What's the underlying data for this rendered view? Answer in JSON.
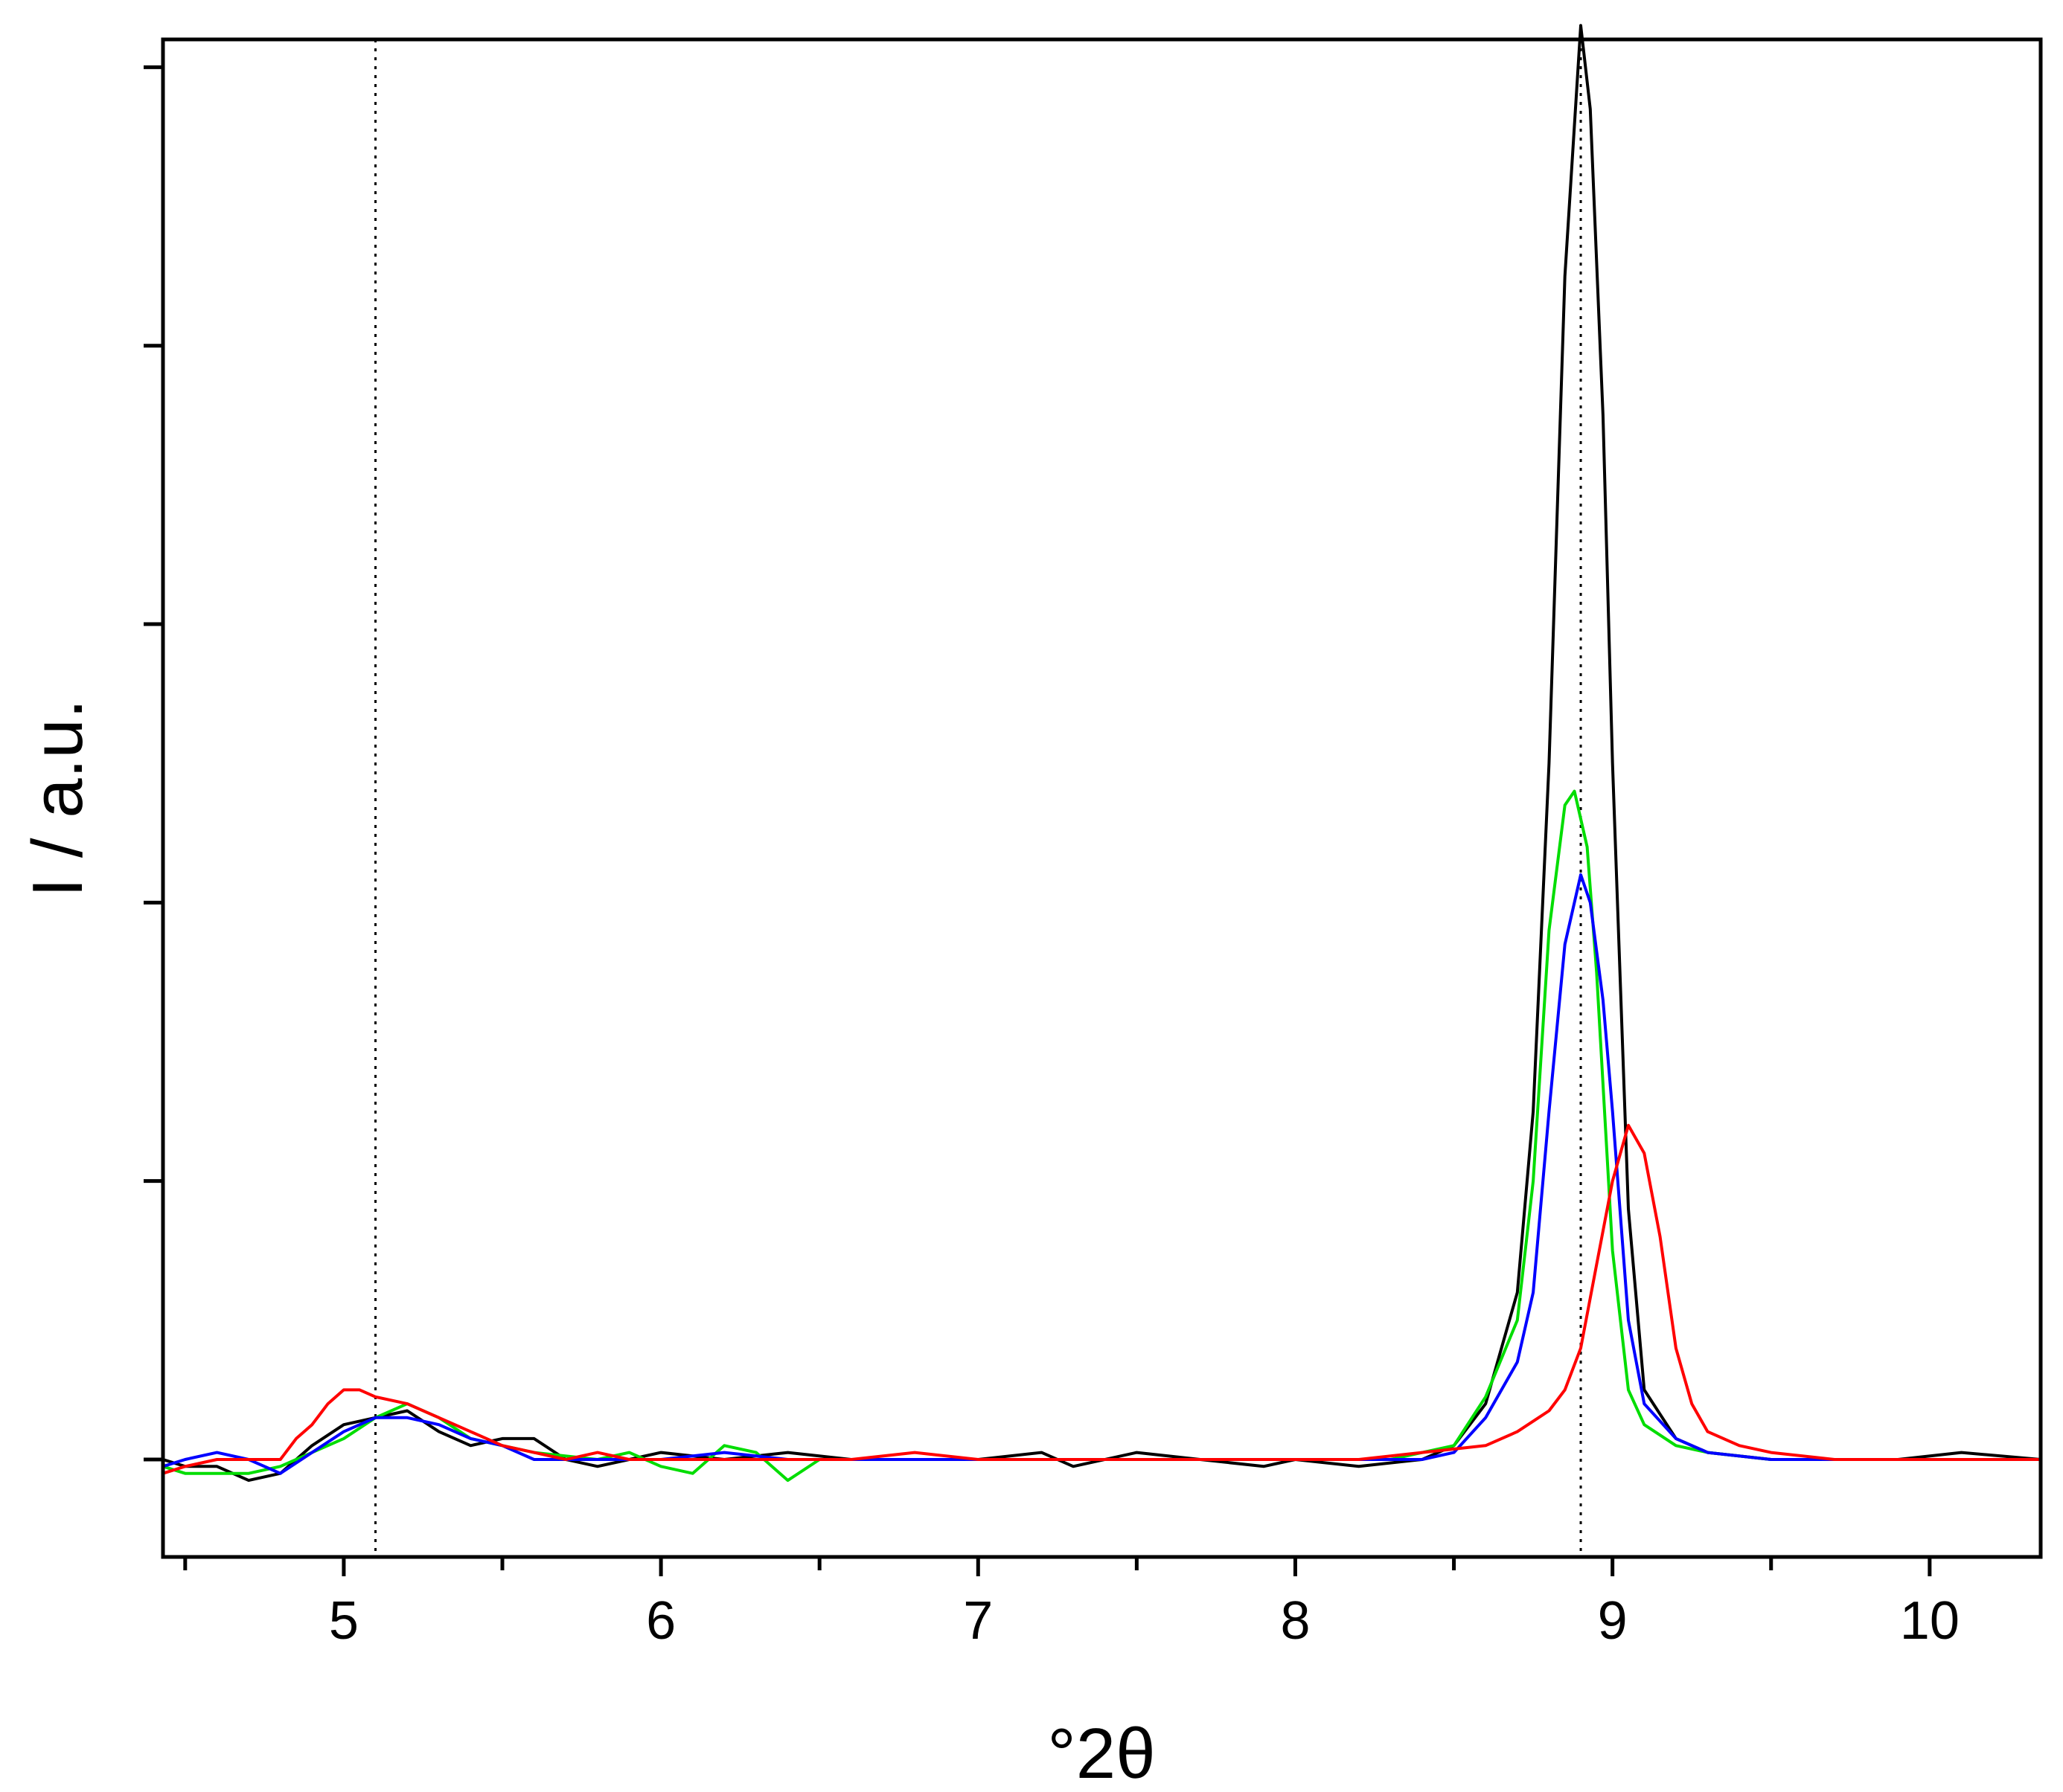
{
  "chart_data": {
    "type": "line",
    "title": "",
    "xlabel": "°2θ",
    "ylabel": "I / a.u.",
    "xlim": [
      4.43,
      10.35
    ],
    "ylim": [
      -0.07,
      1.02
    ],
    "x_ticks": [
      5,
      6,
      7,
      8,
      9,
      10
    ],
    "x_minor_ticks": [
      4.5,
      5.5,
      6.5,
      7.5,
      8.5,
      9.5
    ],
    "y_ticks": [
      0,
      0.2,
      0.4,
      0.6,
      0.8,
      1.0
    ],
    "y_tick_labels_shown": false,
    "grid": false,
    "legend": "none",
    "reference_lines": [
      5.1,
      8.9
    ],
    "series": [
      {
        "color": "#000000",
        "x": [
          4.43,
          4.5,
          4.6,
          4.7,
          4.8,
          4.9,
          5.0,
          5.1,
          5.2,
          5.3,
          5.4,
          5.5,
          5.6,
          5.7,
          5.8,
          5.9,
          6.0,
          6.2,
          6.4,
          6.6,
          6.8,
          7.0,
          7.2,
          7.3,
          7.5,
          7.7,
          7.9,
          8.0,
          8.2,
          8.4,
          8.5,
          8.6,
          8.7,
          8.75,
          8.8,
          8.85,
          8.9,
          8.93,
          8.97,
          9.0,
          9.05,
          9.1,
          9.2,
          9.3,
          9.5,
          9.7,
          9.9,
          10.1,
          10.35
        ],
        "y": [
          0.0,
          -0.005,
          -0.005,
          -0.015,
          -0.01,
          0.01,
          0.025,
          0.03,
          0.035,
          0.02,
          0.01,
          0.015,
          0.015,
          0.0,
          -0.005,
          0.0,
          0.005,
          0.0,
          0.005,
          0.0,
          0.0,
          0.0,
          0.005,
          -0.005,
          0.005,
          0.0,
          -0.005,
          0.0,
          -0.005,
          0.0,
          0.01,
          0.04,
          0.12,
          0.25,
          0.5,
          0.85,
          1.03,
          0.97,
          0.75,
          0.5,
          0.18,
          0.05,
          0.015,
          0.005,
          0.0,
          0.0,
          0.0,
          0.005,
          0.0
        ]
      },
      {
        "color": "#00dd00",
        "x": [
          4.43,
          4.5,
          4.6,
          4.7,
          4.8,
          4.9,
          5.0,
          5.1,
          5.2,
          5.3,
          5.4,
          5.5,
          5.6,
          5.8,
          5.9,
          6.0,
          6.1,
          6.2,
          6.3,
          6.4,
          6.5,
          6.7,
          6.9,
          7.1,
          7.3,
          7.5,
          7.7,
          7.9,
          8.1,
          8.3,
          8.5,
          8.6,
          8.7,
          8.75,
          8.8,
          8.85,
          8.88,
          8.92,
          8.95,
          9.0,
          9.05,
          9.1,
          9.2,
          9.3,
          9.5,
          9.7,
          9.9,
          10.1,
          10.35
        ],
        "y": [
          -0.005,
          -0.01,
          -0.01,
          -0.01,
          -0.005,
          0.005,
          0.015,
          0.03,
          0.04,
          0.03,
          0.015,
          0.01,
          0.005,
          0.0,
          0.005,
          -0.005,
          -0.01,
          0.01,
          0.005,
          -0.015,
          0.0,
          0.0,
          0.0,
          0.0,
          0.0,
          0.0,
          0.0,
          0.0,
          0.0,
          0.0,
          0.01,
          0.045,
          0.1,
          0.2,
          0.38,
          0.47,
          0.48,
          0.44,
          0.35,
          0.15,
          0.05,
          0.025,
          0.01,
          0.005,
          0.0,
          0.0,
          0.0,
          0.0,
          0.0
        ]
      },
      {
        "color": "#0000ff",
        "x": [
          4.43,
          4.5,
          4.6,
          4.7,
          4.8,
          4.9,
          5.0,
          5.1,
          5.2,
          5.3,
          5.4,
          5.5,
          5.6,
          5.8,
          6.0,
          6.2,
          6.4,
          6.6,
          6.8,
          7.0,
          7.2,
          7.4,
          7.6,
          7.8,
          8.0,
          8.2,
          8.4,
          8.5,
          8.6,
          8.7,
          8.75,
          8.8,
          8.85,
          8.9,
          8.93,
          8.97,
          9.0,
          9.05,
          9.1,
          9.2,
          9.3,
          9.5,
          9.7,
          9.9,
          10.1,
          10.35
        ],
        "y": [
          -0.005,
          0.0,
          0.005,
          0.0,
          -0.01,
          0.005,
          0.02,
          0.03,
          0.03,
          0.025,
          0.015,
          0.01,
          0.0,
          0.0,
          0.0,
          0.005,
          0.0,
          0.0,
          0.0,
          0.0,
          0.0,
          0.0,
          0.0,
          0.0,
          0.0,
          0.0,
          0.0,
          0.005,
          0.03,
          0.07,
          0.12,
          0.25,
          0.37,
          0.42,
          0.4,
          0.33,
          0.25,
          0.1,
          0.04,
          0.015,
          0.005,
          0.0,
          0.0,
          0.0,
          0.0,
          0.0
        ]
      },
      {
        "color": "#ff0000",
        "x": [
          4.43,
          4.5,
          4.6,
          4.7,
          4.8,
          4.85,
          4.9,
          4.95,
          5.0,
          5.05,
          5.1,
          5.2,
          5.3,
          5.4,
          5.5,
          5.6,
          5.7,
          5.8,
          5.9,
          6.0,
          6.2,
          6.4,
          6.6,
          6.8,
          7.0,
          7.2,
          7.4,
          7.6,
          7.8,
          8.0,
          8.2,
          8.4,
          8.6,
          8.7,
          8.8,
          8.85,
          8.9,
          8.95,
          9.0,
          9.05,
          9.1,
          9.15,
          9.2,
          9.25,
          9.3,
          9.4,
          9.5,
          9.7,
          9.9,
          10.1,
          10.35
        ],
        "y": [
          -0.01,
          -0.005,
          0.0,
          0.0,
          0.0,
          0.015,
          0.025,
          0.04,
          0.05,
          0.05,
          0.045,
          0.04,
          0.03,
          0.02,
          0.01,
          0.005,
          0.0,
          0.005,
          0.0,
          0.0,
          0.0,
          0.0,
          0.0,
          0.005,
          0.0,
          0.0,
          0.0,
          0.0,
          0.0,
          0.0,
          0.0,
          0.005,
          0.01,
          0.02,
          0.035,
          0.05,
          0.08,
          0.14,
          0.2,
          0.24,
          0.22,
          0.16,
          0.08,
          0.04,
          0.02,
          0.01,
          0.005,
          0.0,
          0.0,
          0.0,
          0.0
        ]
      }
    ]
  }
}
